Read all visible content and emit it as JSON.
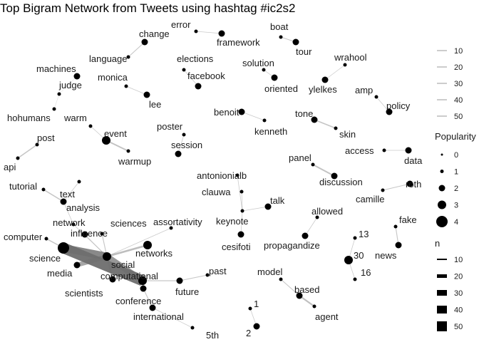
{
  "title": "Top Bigram Network from Tweets using hashtag #ic2s2",
  "colors": {
    "edge": "#6e6e6e",
    "node": "#000000",
    "text": "#1a1a1a",
    "legend_line": "#9a9a9a"
  },
  "nodes": {
    "change": {
      "label": "change",
      "r": 2
    },
    "language": {
      "label": "language",
      "r": 1
    },
    "error": {
      "label": "error",
      "r": 1
    },
    "framework": {
      "label": "framework",
      "r": 2
    },
    "boat": {
      "label": "boat",
      "r": 1
    },
    "tour": {
      "label": "tour",
      "r": 2
    },
    "machines": {
      "label": "machines",
      "r": 2
    },
    "judge": {
      "label": "judge",
      "r": 1
    },
    "hohumans": {
      "label": "hohumans",
      "r": 1
    },
    "monica": {
      "label": "monica",
      "r": 1
    },
    "lee": {
      "label": "lee",
      "r": 2
    },
    "elections": {
      "label": "elections",
      "r": 1
    },
    "facebook": {
      "label": "facebook",
      "r": 2
    },
    "solution": {
      "label": "solution",
      "r": 1
    },
    "oriented": {
      "label": "oriented",
      "r": 2
    },
    "wrahool": {
      "label": "wrahool",
      "r": 1
    },
    "ylelkes": {
      "label": "ylelkes",
      "r": 2
    },
    "amp": {
      "label": "amp",
      "r": 1
    },
    "policy": {
      "label": "policy",
      "r": 2
    },
    "warm": {
      "label": "warm",
      "r": 1
    },
    "event": {
      "label": "event",
      "r": 3
    },
    "warmup": {
      "label": "warmup",
      "r": 1
    },
    "post": {
      "label": "post",
      "r": 1
    },
    "api": {
      "label": "api",
      "r": 1
    },
    "poster": {
      "label": "poster",
      "r": 1
    },
    "session": {
      "label": "session",
      "r": 2
    },
    "benoit": {
      "label": "benoit",
      "r": 2
    },
    "kenneth": {
      "label": "kenneth",
      "r": 1
    },
    "tone": {
      "label": "tone",
      "r": 2
    },
    "skin": {
      "label": "skin",
      "r": 1
    },
    "access": {
      "label": "access",
      "r": 1
    },
    "data": {
      "label": "data",
      "r": 2
    },
    "panel": {
      "label": "panel",
      "r": 1
    },
    "discussion": {
      "label": "discussion",
      "r": 2
    },
    "roth": {
      "label": "roth",
      "r": 2
    },
    "camille": {
      "label": "camille",
      "r": 1
    },
    "antonionialb": {
      "label": "antonionialb",
      "r": 1
    },
    "clauwa": {
      "label": "clauwa",
      "r": 1
    },
    "keynote": {
      "label": "keynote",
      "r": 1
    },
    "talk": {
      "label": "talk",
      "r": 2
    },
    "cesifoti": {
      "label": "cesifoti",
      "r": 2
    },
    "allowed": {
      "label": "allowed",
      "r": 1
    },
    "propagandize": {
      "label": "propagandize",
      "r": 2
    },
    "fake": {
      "label": "fake",
      "r": 1
    },
    "news": {
      "label": "news",
      "r": 2
    },
    "tutorial": {
      "label": "tutorial",
      "r": 1
    },
    "text": {
      "label": "text",
      "r": 1
    },
    "analysis": {
      "label": "analysis",
      "r": 2
    },
    "network": {
      "label": "network",
      "r": 1
    },
    "influence": {
      "label": "influence",
      "r": 2
    },
    "sciences": {
      "label": "sciences",
      "r": 1
    },
    "assortativity": {
      "label": "assortativity",
      "r": 1
    },
    "networks": {
      "label": "networks",
      "r": 3
    },
    "computer": {
      "label": "computer",
      "r": 1
    },
    "science": {
      "label": "science",
      "r": 4
    },
    "social": {
      "label": "social",
      "r": 3
    },
    "media": {
      "label": "media",
      "r": 2
    },
    "computational": {
      "label": "computational",
      "r": 3
    },
    "scientists": {
      "label": "scientists",
      "r": 2
    },
    "conference": {
      "label": "conference",
      "r": 2
    },
    "future": {
      "label": "future",
      "r": 2
    },
    "past": {
      "label": "past",
      "r": 1
    },
    "international": {
      "label": "international",
      "r": 2
    },
    "fifth": {
      "label": "5th",
      "r": 1
    },
    "n13": {
      "label": "13",
      "r": 1
    },
    "n30": {
      "label": "30",
      "r": 3
    },
    "n16": {
      "label": "16",
      "r": 1
    },
    "model": {
      "label": "model",
      "r": 1
    },
    "based": {
      "label": "based",
      "r": 2
    },
    "agent": {
      "label": "agent",
      "r": 1
    },
    "n1": {
      "label": "1",
      "r": 1
    },
    "n2": {
      "label": "2",
      "r": 2
    }
  },
  "edges": [
    {
      "from": "language",
      "to": "change",
      "n": 12
    },
    {
      "from": "error",
      "to": "framework",
      "n": 11
    },
    {
      "from": "boat",
      "to": "tour",
      "n": 12
    },
    {
      "from": "machines",
      "to": "judge",
      "n": 10
    },
    {
      "from": "judge",
      "to": "hohumans",
      "n": 10
    },
    {
      "from": "monica",
      "to": "lee",
      "n": 11
    },
    {
      "from": "elections",
      "to": "facebook",
      "n": 11
    },
    {
      "from": "solution",
      "to": "oriented",
      "n": 11
    },
    {
      "from": "wrahool",
      "to": "ylelkes",
      "n": 11
    },
    {
      "from": "amp",
      "to": "policy",
      "n": 11
    },
    {
      "from": "warm",
      "to": "event",
      "n": 11
    },
    {
      "from": "event",
      "to": "warmup",
      "n": 14
    },
    {
      "from": "post",
      "to": "api",
      "n": 13
    },
    {
      "from": "poster",
      "to": "session",
      "n": 11
    },
    {
      "from": "benoit",
      "to": "kenneth",
      "n": 11
    },
    {
      "from": "tone",
      "to": "skin",
      "n": 13
    },
    {
      "from": "access",
      "to": "data",
      "n": 11
    },
    {
      "from": "panel",
      "to": "discussion",
      "n": 14
    },
    {
      "from": "camille",
      "to": "roth",
      "n": 12
    },
    {
      "from": "antonionialb",
      "to": "keynote",
      "n": 11
    },
    {
      "from": "clauwa",
      "to": "keynote",
      "n": 11
    },
    {
      "from": "keynote",
      "to": "talk",
      "n": 11
    },
    {
      "from": "keynote",
      "to": "cesifoti",
      "n": 11
    },
    {
      "from": "allowed",
      "to": "propagandize",
      "n": 11
    },
    {
      "from": "fake",
      "to": "news",
      "n": 12
    },
    {
      "from": "tutorial",
      "to": "analysis",
      "n": 13
    },
    {
      "from": "text",
      "to": "analysis",
      "n": 11
    },
    {
      "from": "network",
      "to": "analysis",
      "n": 11
    },
    {
      "from": "social",
      "to": "network",
      "n": 11
    },
    {
      "from": "social",
      "to": "influence",
      "n": 11
    },
    {
      "from": "social",
      "to": "sciences",
      "n": 12
    },
    {
      "from": "social",
      "to": "assortativity",
      "n": 11
    },
    {
      "from": "social",
      "to": "networks",
      "n": 16
    },
    {
      "from": "computer",
      "to": "science",
      "n": 13
    },
    {
      "from": "social",
      "to": "science",
      "n": 38
    },
    {
      "from": "computational",
      "to": "science",
      "n": 50
    },
    {
      "from": "social",
      "to": "media",
      "n": 26
    },
    {
      "from": "computational",
      "to": "social",
      "n": 32
    },
    {
      "from": "social",
      "to": "scientists",
      "n": 14
    },
    {
      "from": "computational",
      "to": "future",
      "n": 12
    },
    {
      "from": "computational",
      "to": "conference",
      "n": 15
    },
    {
      "from": "future",
      "to": "past",
      "n": 12
    },
    {
      "from": "conference",
      "to": "international",
      "n": 12
    },
    {
      "from": "international",
      "to": "fifth",
      "n": 11
    },
    {
      "from": "n30",
      "to": "n13",
      "n": 11
    },
    {
      "from": "n30",
      "to": "n16",
      "n": 11
    },
    {
      "from": "model",
      "to": "based",
      "n": 12
    },
    {
      "from": "based",
      "to": "agent",
      "n": 15
    },
    {
      "from": "n1",
      "to": "n2",
      "n": 11
    }
  ],
  "legend": {
    "edge_lines": [
      {
        "label": "10"
      },
      {
        "label": "20"
      },
      {
        "label": "30"
      },
      {
        "label": "40"
      },
      {
        "label": "50"
      }
    ],
    "popularity": {
      "title": "Popularity",
      "items": [
        {
          "label": "0",
          "r": 0
        },
        {
          "label": "1",
          "r": 1
        },
        {
          "label": "2",
          "r": 2
        },
        {
          "label": "3",
          "r": 3
        },
        {
          "label": "4",
          "r": 4
        }
      ]
    },
    "n": {
      "title": "n",
      "items": [
        {
          "label": "10",
          "n": 10
        },
        {
          "label": "20",
          "n": 20
        },
        {
          "label": "30",
          "n": 30
        },
        {
          "label": "40",
          "n": 40
        },
        {
          "label": "50",
          "n": 50
        }
      ]
    }
  }
}
